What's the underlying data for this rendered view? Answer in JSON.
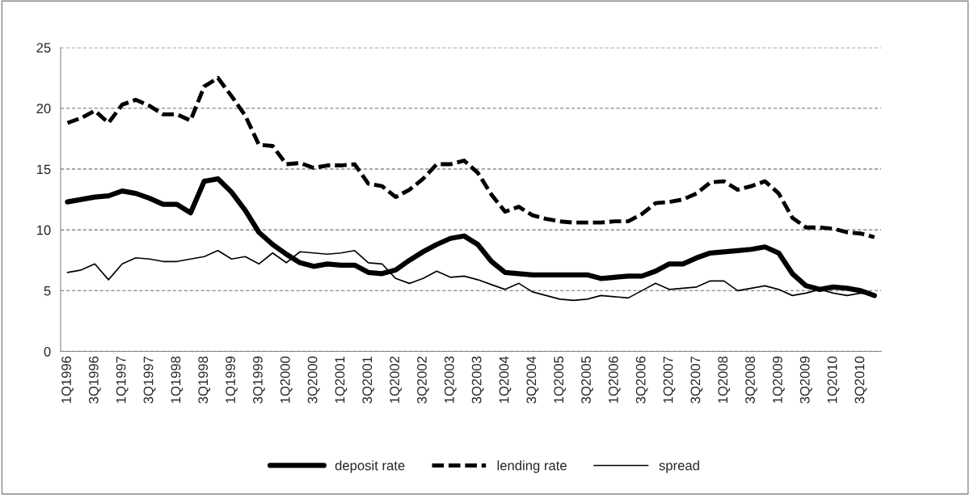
{
  "chart_data": {
    "type": "line",
    "categories": [
      "1Q1996",
      null,
      "3Q1996",
      null,
      "1Q1997",
      null,
      "3Q1997",
      null,
      "1Q1998",
      null,
      "3Q1998",
      null,
      "1Q1999",
      null,
      "3Q1999",
      null,
      "1Q2000",
      null,
      "3Q2000",
      null,
      "1Q2001",
      null,
      "3Q2001",
      null,
      "1Q2002",
      null,
      "3Q2002",
      null,
      "1Q2003",
      null,
      "3Q2003",
      null,
      "1Q2004",
      null,
      "3Q2004",
      null,
      "1Q2005",
      null,
      "3Q2005",
      null,
      "1Q2006",
      null,
      "3Q2006",
      null,
      "1Q2007",
      null,
      "3Q2007",
      null,
      "1Q2008",
      null,
      "3Q2008",
      null,
      "1Q2009",
      null,
      "3Q2009",
      null,
      "1Q2010",
      null,
      "3Q2010",
      null
    ],
    "series": [
      {
        "name": "deposit rate",
        "color": "#000000",
        "line_style": "solid",
        "values": [
          12.3,
          12.5,
          12.7,
          12.8,
          13.2,
          13.0,
          12.6,
          12.1,
          12.1,
          11.4,
          14.0,
          14.2,
          13.1,
          11.6,
          9.8,
          8.8,
          8.0,
          7.3,
          7.0,
          7.2,
          7.1,
          7.1,
          6.5,
          6.4,
          6.7,
          7.5,
          8.2,
          8.8,
          9.3,
          9.5,
          8.8,
          7.4,
          6.5,
          6.4,
          6.3,
          6.3,
          6.3,
          6.3,
          6.3,
          6.0,
          6.1,
          6.2,
          6.2,
          6.6,
          7.2,
          7.2,
          7.7,
          8.1,
          8.2,
          8.3,
          8.4,
          8.6,
          8.1,
          6.4,
          5.4,
          5.1,
          5.3,
          5.2,
          5.0,
          4.6
        ]
      },
      {
        "name": "lending rate",
        "color": "#000000",
        "line_style": "dashed",
        "values": [
          18.8,
          19.2,
          19.8,
          18.8,
          20.3,
          20.7,
          20.2,
          19.5,
          19.5,
          19.0,
          21.8,
          22.5,
          21.0,
          19.4,
          17.0,
          16.9,
          15.4,
          15.5,
          15.1,
          15.3,
          15.3,
          15.4,
          13.8,
          13.6,
          12.7,
          13.3,
          14.2,
          15.4,
          15.4,
          15.7,
          14.7,
          12.9,
          11.5,
          11.9,
          11.2,
          10.9,
          10.7,
          10.6,
          10.6,
          10.6,
          10.7,
          10.7,
          11.3,
          12.2,
          12.3,
          12.5,
          13.0,
          13.9,
          14.0,
          13.3,
          13.6,
          14.0,
          13.0,
          11.0,
          10.2,
          10.2,
          10.1,
          9.8,
          9.7,
          9.4
        ]
      },
      {
        "name": "spread",
        "color": "#000000",
        "line_style": "solid",
        "values": [
          6.5,
          6.7,
          7.2,
          5.9,
          7.2,
          7.7,
          7.6,
          7.4,
          7.4,
          7.6,
          7.8,
          8.3,
          7.6,
          7.8,
          7.2,
          8.1,
          7.3,
          8.2,
          8.1,
          8.0,
          8.1,
          8.3,
          7.3,
          7.2,
          6.0,
          5.6,
          6.0,
          6.6,
          6.1,
          6.2,
          5.9,
          5.5,
          5.1,
          5.6,
          4.9,
          4.6,
          4.3,
          4.2,
          4.3,
          4.6,
          4.5,
          4.4,
          5.0,
          5.6,
          5.1,
          5.2,
          5.3,
          5.8,
          5.8,
          5.0,
          5.2,
          5.4,
          5.1,
          4.6,
          4.8,
          5.1,
          4.8,
          4.6,
          4.8,
          4.7
        ]
      }
    ],
    "ylim": [
      0,
      25
    ],
    "yticks": [
      0,
      5,
      10,
      15,
      20,
      25
    ],
    "grid": "y",
    "legend": "bottom"
  }
}
